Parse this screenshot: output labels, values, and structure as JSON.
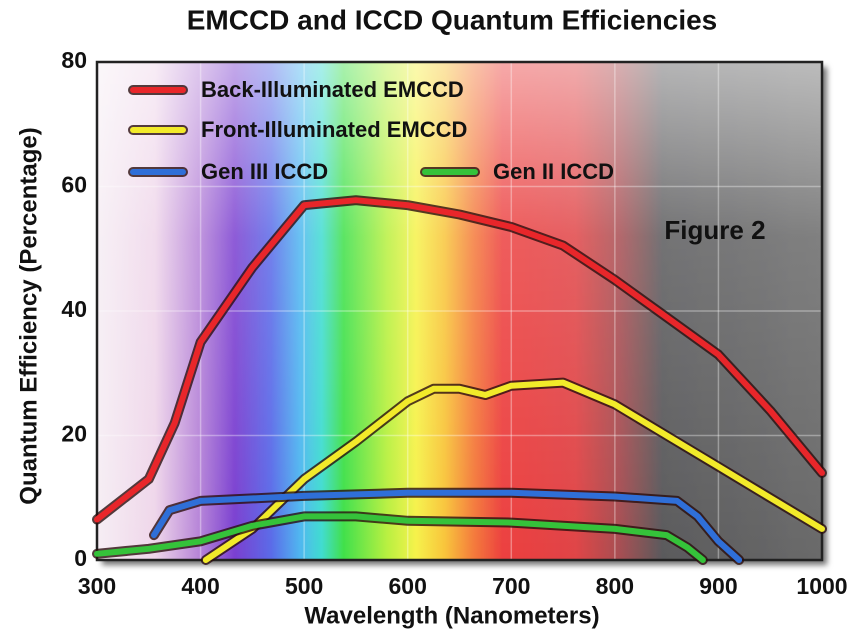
{
  "chart_data": {
    "type": "line",
    "title": "EMCCD and ICCD Quantum Efficiencies",
    "x_label": "Wavelength (Nanometers)",
    "y_label": "Quantum Efficiency (Percentage)",
    "annotation": "Figure 2",
    "xlim": [
      300,
      1000
    ],
    "ylim": [
      0,
      80
    ],
    "xticks": [
      300,
      400,
      500,
      600,
      700,
      800,
      900,
      1000
    ],
    "yticks": [
      0,
      20,
      40,
      60,
      80
    ],
    "grid": true,
    "legend": "top-left",
    "series": [
      {
        "name": "Back-Illuminated EMCCD",
        "color": "#e8262a",
        "x": [
          300,
          350,
          375,
          400,
          450,
          500,
          550,
          600,
          650,
          700,
          750,
          800,
          850,
          900,
          950,
          1000
        ],
        "values": [
          6.5,
          13,
          22,
          35,
          47,
          57,
          57.8,
          57,
          55.5,
          53.5,
          50.5,
          45,
          39,
          33,
          24,
          14
        ]
      },
      {
        "name": "Front-Illuminated EMCCD",
        "color": "#f2ea2a",
        "x": [
          405,
          450,
          500,
          550,
          600,
          625,
          650,
          675,
          700,
          750,
          800,
          850,
          900,
          950,
          1000
        ],
        "values": [
          0,
          5,
          13,
          19,
          25.5,
          27.5,
          27.5,
          26.5,
          28,
          28.5,
          25,
          20,
          15,
          10,
          5
        ]
      },
      {
        "name": "Gen III ICCD",
        "color": "#2f6fd8",
        "x": [
          355,
          370,
          400,
          500,
          600,
          700,
          800,
          860,
          880,
          900,
          920
        ],
        "values": [
          4,
          8,
          9.5,
          10.3,
          10.8,
          10.8,
          10.2,
          9.5,
          7,
          3,
          0
        ]
      },
      {
        "name": "Gen II ICCD",
        "color": "#35c23a",
        "x": [
          300,
          350,
          400,
          450,
          500,
          550,
          600,
          700,
          800,
          850,
          870,
          885
        ],
        "values": [
          1,
          1.8,
          3,
          5.5,
          7,
          7,
          6.3,
          6,
          5,
          4,
          2,
          0
        ]
      }
    ]
  }
}
